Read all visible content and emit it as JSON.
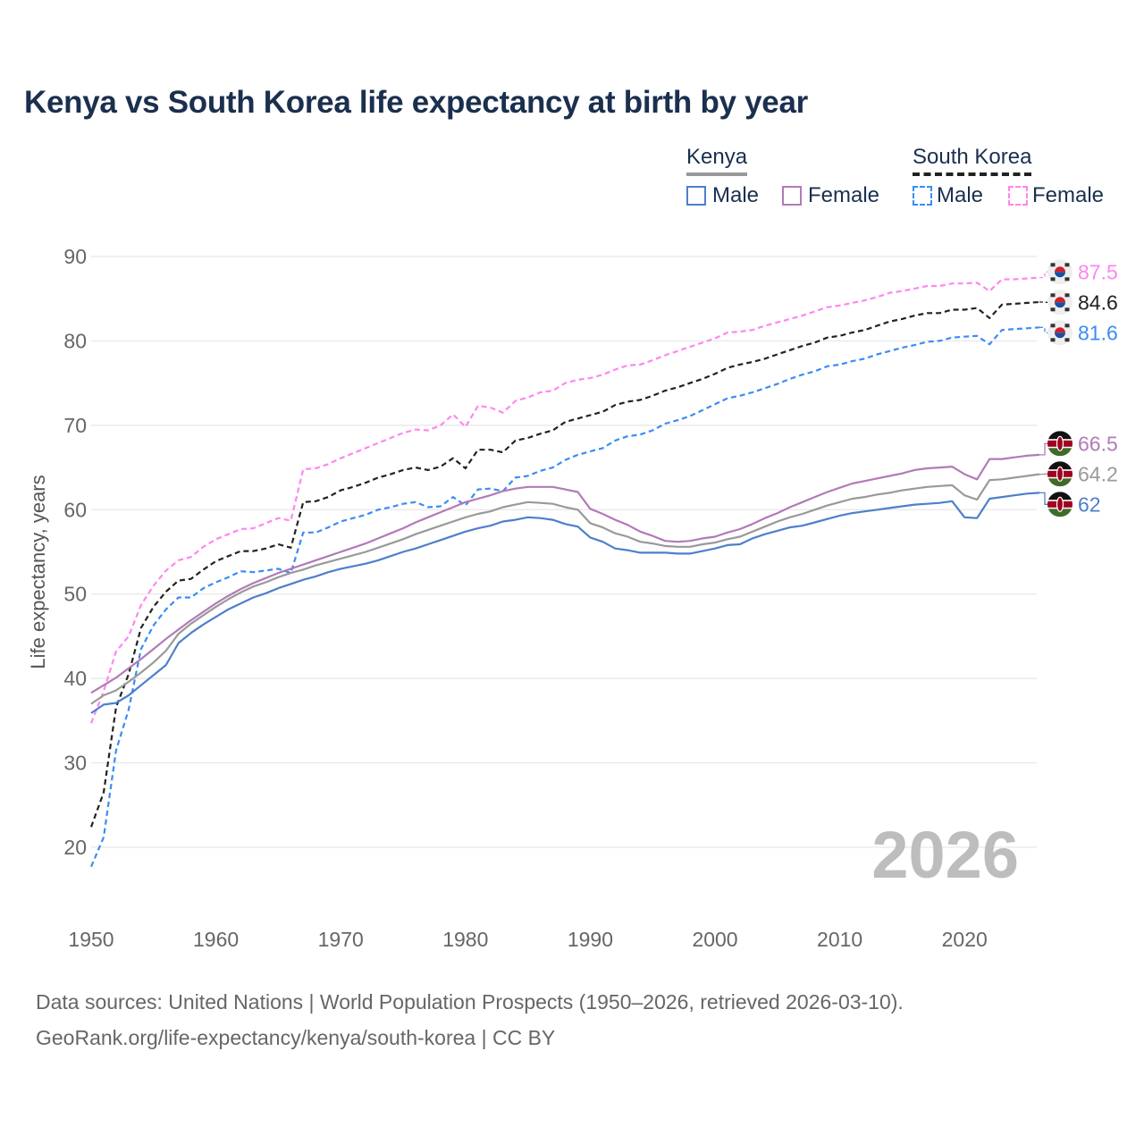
{
  "title": "Kenya vs South Korea life expectancy at birth by year",
  "legend": {
    "groups": [
      {
        "name": "Kenya",
        "items": [
          "Male",
          "Female"
        ]
      },
      {
        "name": "South Korea",
        "items": [
          "Male",
          "Female"
        ]
      }
    ]
  },
  "footer": {
    "line1": "Data sources: United Nations | World Population Prospects (1950–2026, retrieved 2026-03-10).",
    "line2": "GeoRank.org/life-expectancy/kenya/south-korea | CC BY"
  },
  "chart_data": {
    "type": "line",
    "title": "Kenya vs South Korea life expectancy at birth by year",
    "xlabel": "",
    "ylabel": "Life expectancy, years",
    "xlim": [
      1950,
      2026
    ],
    "ylim": [
      15,
      95
    ],
    "xticks": [
      1950,
      1960,
      1970,
      1980,
      1990,
      2000,
      2010,
      2020
    ],
    "yticks": [
      20,
      30,
      40,
      50,
      60,
      70,
      80,
      90
    ],
    "grid": true,
    "legend_position": "top-right",
    "year_watermark": "2026",
    "x_start": 1950,
    "series": [
      {
        "name": "South Korea Female",
        "country": "South Korea",
        "sex": "Female",
        "color": "#ff85f0",
        "dashed": true,
        "end_label": "87.5",
        "values": [
          34.7,
          38.5,
          43.2,
          45.0,
          48.7,
          51.0,
          52.8,
          54.0,
          54.4,
          55.6,
          56.5,
          57.1,
          57.7,
          57.8,
          58.4,
          59.0,
          58.7,
          64.8,
          64.9,
          65.4,
          66.1,
          66.7,
          67.3,
          67.9,
          68.5,
          69.1,
          69.5,
          69.4,
          70.0,
          71.3,
          69.8,
          72.3,
          72.1,
          71.5,
          72.9,
          73.3,
          73.9,
          74.1,
          75.0,
          75.4,
          75.6,
          76.0,
          76.6,
          77.1,
          77.2,
          77.7,
          78.3,
          78.8,
          79.3,
          79.8,
          80.3,
          81.0,
          81.1,
          81.3,
          81.8,
          82.2,
          82.6,
          83.0,
          83.5,
          84.0,
          84.2,
          84.5,
          84.8,
          85.2,
          85.7,
          85.9,
          86.2,
          86.5,
          86.5,
          86.8,
          86.8,
          86.9,
          85.9,
          87.3,
          87.3,
          87.4,
          87.5
        ]
      },
      {
        "name": "South Korea",
        "country": "South Korea",
        "sex": "Total",
        "color": "#222222",
        "dashed": true,
        "end_label": "84.6",
        "values": [
          22.4,
          26.5,
          36.6,
          40.5,
          46.0,
          48.5,
          50.3,
          51.6,
          51.8,
          52.9,
          53.9,
          54.5,
          55.1,
          55.1,
          55.4,
          55.9,
          55.5,
          60.9,
          61.0,
          61.5,
          62.3,
          62.7,
          63.2,
          63.8,
          64.2,
          64.7,
          65.0,
          64.7,
          65.1,
          66.1,
          64.9,
          67.1,
          67.1,
          66.8,
          68.2,
          68.5,
          69.0,
          69.4,
          70.4,
          70.8,
          71.2,
          71.6,
          72.4,
          72.8,
          73.0,
          73.5,
          74.1,
          74.5,
          75.0,
          75.5,
          76.1,
          76.8,
          77.2,
          77.5,
          77.9,
          78.4,
          78.9,
          79.4,
          79.8,
          80.4,
          80.6,
          81.0,
          81.3,
          81.8,
          82.3,
          82.6,
          83.0,
          83.3,
          83.3,
          83.7,
          83.7,
          83.9,
          82.7,
          84.3,
          84.4,
          84.5,
          84.6
        ]
      },
      {
        "name": "South Korea Male",
        "country": "South Korea",
        "sex": "Male",
        "color": "#3a8cf5",
        "dashed": true,
        "end_label": "81.6",
        "values": [
          17.7,
          21.2,
          31.5,
          36.3,
          43.5,
          46.3,
          48.2,
          49.6,
          49.6,
          50.7,
          51.4,
          52.0,
          52.7,
          52.6,
          52.8,
          53.0,
          52.5,
          57.3,
          57.3,
          57.9,
          58.6,
          59.0,
          59.4,
          60.0,
          60.3,
          60.7,
          60.9,
          60.3,
          60.4,
          61.5,
          60.5,
          62.4,
          62.5,
          62.2,
          63.8,
          64.0,
          64.6,
          65.0,
          65.9,
          66.5,
          66.9,
          67.3,
          68.2,
          68.7,
          68.9,
          69.4,
          70.2,
          70.6,
          71.1,
          71.8,
          72.5,
          73.2,
          73.5,
          73.9,
          74.4,
          74.9,
          75.5,
          76.0,
          76.4,
          77.0,
          77.2,
          77.6,
          77.9,
          78.4,
          78.8,
          79.2,
          79.5,
          79.9,
          80.0,
          80.4,
          80.5,
          80.6,
          79.6,
          81.3,
          81.4,
          81.5,
          81.6
        ]
      },
      {
        "name": "Kenya Female",
        "country": "Kenya",
        "sex": "Female",
        "color": "#b27ab8",
        "dashed": false,
        "end_label": "66.5",
        "values": [
          38.3,
          39.2,
          40.1,
          41.2,
          42.3,
          43.5,
          44.7,
          45.8,
          46.9,
          47.9,
          48.9,
          49.8,
          50.6,
          51.3,
          51.9,
          52.5,
          53.0,
          53.5,
          54.0,
          54.5,
          55.0,
          55.5,
          56.0,
          56.6,
          57.2,
          57.8,
          58.5,
          59.1,
          59.7,
          60.3,
          60.9,
          61.3,
          61.7,
          62.2,
          62.5,
          62.7,
          62.7,
          62.7,
          62.4,
          62.1,
          60.1,
          59.5,
          58.8,
          58.2,
          57.4,
          56.9,
          56.3,
          56.2,
          56.3,
          56.6,
          56.8,
          57.3,
          57.7,
          58.3,
          59.0,
          59.6,
          60.3,
          60.9,
          61.5,
          62.1,
          62.6,
          63.1,
          63.4,
          63.7,
          64.0,
          64.3,
          64.7,
          64.9,
          65.0,
          65.1,
          64.2,
          63.6,
          66.0,
          66.0,
          66.2,
          66.4,
          66.5
        ]
      },
      {
        "name": "Kenya",
        "country": "Kenya",
        "sex": "Total",
        "color": "#999999",
        "dashed": false,
        "end_label": "64.2",
        "values": [
          37.0,
          38.0,
          38.6,
          39.6,
          40.7,
          41.9,
          43.3,
          45.3,
          46.5,
          47.5,
          48.5,
          49.4,
          50.2,
          50.9,
          51.4,
          52.0,
          52.5,
          52.9,
          53.4,
          53.8,
          54.2,
          54.6,
          55.0,
          55.5,
          56.0,
          56.5,
          57.1,
          57.6,
          58.1,
          58.6,
          59.1,
          59.5,
          59.8,
          60.3,
          60.6,
          60.9,
          60.8,
          60.7,
          60.3,
          60.0,
          58.4,
          57.9,
          57.2,
          56.8,
          56.2,
          56.0,
          55.7,
          55.6,
          55.6,
          55.9,
          56.1,
          56.5,
          56.8,
          57.4,
          58.0,
          58.6,
          59.1,
          59.5,
          60.0,
          60.5,
          60.9,
          61.3,
          61.5,
          61.8,
          62.0,
          62.3,
          62.5,
          62.7,
          62.8,
          62.9,
          61.7,
          61.2,
          63.5,
          63.6,
          63.8,
          64.0,
          64.2
        ]
      },
      {
        "name": "Kenya Male",
        "country": "Kenya",
        "sex": "Male",
        "color": "#4d7fcc",
        "dashed": false,
        "end_label": "62",
        "values": [
          35.9,
          36.9,
          37.1,
          38.0,
          39.2,
          40.4,
          41.6,
          44.2,
          45.4,
          46.4,
          47.3,
          48.2,
          48.9,
          49.6,
          50.1,
          50.7,
          51.2,
          51.7,
          52.1,
          52.6,
          53.0,
          53.3,
          53.6,
          54.0,
          54.5,
          55.0,
          55.4,
          55.9,
          56.4,
          56.9,
          57.4,
          57.8,
          58.1,
          58.6,
          58.8,
          59.1,
          59.0,
          58.8,
          58.3,
          58.0,
          56.7,
          56.2,
          55.4,
          55.2,
          54.9,
          54.9,
          54.9,
          54.8,
          54.8,
          55.1,
          55.4,
          55.8,
          55.9,
          56.6,
          57.1,
          57.5,
          57.9,
          58.1,
          58.5,
          58.9,
          59.3,
          59.6,
          59.8,
          60.0,
          60.2,
          60.4,
          60.6,
          60.7,
          60.8,
          61.0,
          59.1,
          59.0,
          61.3,
          61.5,
          61.7,
          61.9,
          62.0
        ]
      }
    ]
  }
}
